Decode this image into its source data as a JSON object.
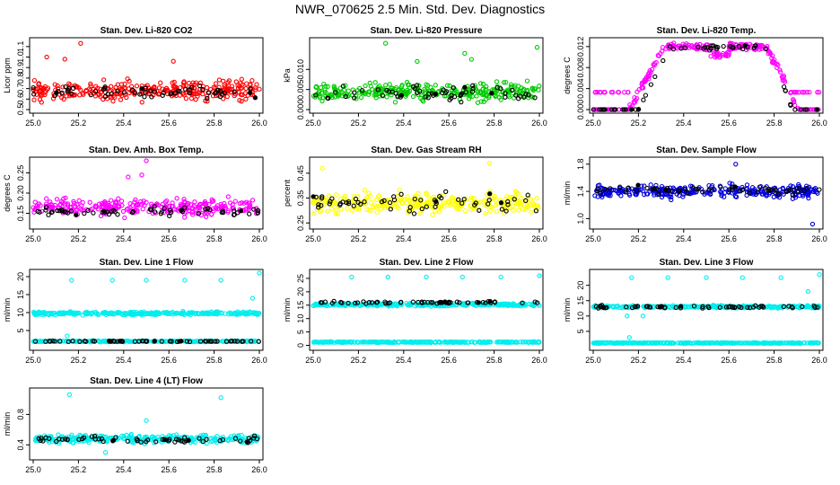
{
  "title": "NWR_070625  2.5 Min. Std. Dev. Diagnostics",
  "chart_data": [
    {
      "type": "scatter",
      "title": "Stan. Dev. Li-820 CO2",
      "ylabel": "Licor ppm",
      "color": "#ff0000",
      "xlim": [
        25.0,
        26.0
      ],
      "ylim": [
        0.5,
        1.15
      ],
      "xticks": [
        "25.0",
        "25.2",
        "25.4",
        "25.6",
        "25.8",
        "26.0"
      ],
      "yticks": [
        "0.5",
        "0.6",
        "0.7",
        "0.8",
        "0.9",
        "1.0",
        "1.1"
      ],
      "series": [
        {
          "center": 0.68,
          "spread": 0.08,
          "outliers": [
            [
              25.21,
              1.13
            ],
            [
              25.06,
              1.0
            ],
            [
              25.14,
              0.98
            ],
            [
              25.62,
              0.96
            ]
          ]
        }
      ],
      "black": {
        "center": 0.66,
        "spread": 0.06
      }
    },
    {
      "type": "scatter",
      "title": "Stan. Dev. Li-820 Pressure",
      "ylabel": "kPa",
      "color": "#00cc00",
      "xlim": [
        25.0,
        26.0
      ],
      "ylim": [
        0.0,
        0.017
      ],
      "xticks": [
        "25.0",
        "25.2",
        "25.4",
        "25.6",
        "25.8",
        "26.0"
      ],
      "yticks": [
        "0.000",
        "0.005",
        "0.010"
      ],
      "series": [
        {
          "center": 0.0045,
          "spread": 0.002,
          "outliers": [
            [
              25.32,
              0.0165
            ],
            [
              25.99,
              0.0155
            ],
            [
              25.67,
              0.014
            ],
            [
              25.46,
              0.012
            ],
            [
              25.7,
              0.0125
            ]
          ]
        }
      ],
      "black": {
        "center": 0.004,
        "spread": 0.002
      }
    },
    {
      "type": "scatter",
      "title": "Stan. Dev. Li-820 Temp.",
      "ylabel": "degrees C",
      "color": "#ff00ff",
      "xlim": [
        25.0,
        26.0
      ],
      "ylim": [
        0.0,
        0.013
      ],
      "xticks": [
        "25.0",
        "25.2",
        "25.4",
        "25.6",
        "25.8",
        "26.0"
      ],
      "yticks": [
        "0.000",
        "0.004",
        "0.008",
        "0.012"
      ],
      "series": [
        {
          "profile": "hump",
          "low": 0.0,
          "high": 0.0125,
          "start": 25.2,
          "end": 25.88
        }
      ],
      "black": {
        "profile": "hump"
      }
    },
    {
      "type": "scatter",
      "title": "Stan. Dev. Amb. Box Temp.",
      "ylabel": "degrees C",
      "color": "#ff00ff",
      "xlim": [
        25.0,
        26.0
      ],
      "ylim": [
        0.12,
        0.28
      ],
      "xticks": [
        "25.0",
        "25.2",
        "25.4",
        "25.6",
        "25.8",
        "26.0"
      ],
      "yticks": [
        "0.15",
        "0.20",
        "0.25"
      ],
      "series": [
        {
          "center": 0.165,
          "spread": 0.02,
          "outliers": [
            [
              25.5,
              0.28
            ],
            [
              25.48,
              0.245
            ],
            [
              25.42,
              0.24
            ]
          ]
        }
      ],
      "black": {
        "center": 0.155,
        "spread": 0.01
      }
    },
    {
      "type": "scatter",
      "title": "Stan. Dev. Gas Stream RH",
      "ylabel": "percent",
      "color": "#ffff00",
      "xlim": [
        25.0,
        26.0
      ],
      "ylim": [
        0.24,
        0.5
      ],
      "xticks": [
        "25.0",
        "25.2",
        "25.4",
        "25.6",
        "25.8",
        "26.0"
      ],
      "yticks": [
        "0.25",
        "0.35",
        "0.45"
      ],
      "series": [
        {
          "center": 0.33,
          "spread": 0.04,
          "outliers": [
            [
              25.78,
              0.49
            ],
            [
              25.04,
              0.47
            ]
          ]
        }
      ],
      "black": {
        "center": 0.33,
        "spread": 0.04
      }
    },
    {
      "type": "scatter",
      "title": "Stan. Dev. Sample Flow",
      "ylabel": "ml/min",
      "color": "#0000dd",
      "xlim": [
        25.0,
        26.0
      ],
      "ylim": [
        0.9,
        1.85
      ],
      "xticks": [
        "25.0",
        "25.2",
        "25.4",
        "25.6",
        "25.8",
        "26.0"
      ],
      "yticks": [
        "1.0",
        "1.4",
        "1.8"
      ],
      "series": [
        {
          "center": 1.4,
          "spread": 0.09,
          "outliers": [
            [
              25.63,
              1.8
            ],
            [
              25.97,
              0.92
            ]
          ]
        }
      ],
      "black": {
        "center": 1.42,
        "spread": 0.06
      }
    },
    {
      "type": "scatter",
      "title": "Stan. Dev. Line 1 Flow",
      "ylabel": "ml/min",
      "color": "#00eeee",
      "xlim": [
        25.0,
        26.0
      ],
      "ylim": [
        0.5,
        21
      ],
      "xticks": [
        "25.0",
        "25.2",
        "25.4",
        "25.6",
        "25.8",
        "26.0"
      ],
      "yticks": [
        "5",
        "10",
        "15",
        "20"
      ],
      "series": [
        {
          "center": 9.8,
          "spread": 0.4,
          "outliers": [
            [
              26.0,
              21
            ],
            [
              25.17,
              19
            ],
            [
              25.35,
              19
            ],
            [
              25.5,
              19
            ],
            [
              25.67,
              19
            ],
            [
              25.83,
              19
            ],
            [
              25.97,
              14
            ],
            [
              25.15,
              3.5
            ]
          ]
        },
        {
          "center": 2.0,
          "spread": 0.15
        }
      ],
      "black": {
        "center": 2.0,
        "spread": 0.1
      }
    },
    {
      "type": "scatter",
      "title": "Stan. Dev. Line 2 Flow",
      "ylabel": "ml/min",
      "color": "#00eeee",
      "xlim": [
        25.0,
        26.0
      ],
      "ylim": [
        -0.5,
        27
      ],
      "xticks": [
        "25.0",
        "25.2",
        "25.4",
        "25.6",
        "25.8",
        "26.0"
      ],
      "yticks": [
        "0",
        "5",
        "10",
        "15",
        "20",
        "25"
      ],
      "series": [
        {
          "center": 15.2,
          "spread": 0.5,
          "outliers": [
            [
              25.17,
              25.5
            ],
            [
              25.33,
              25.5
            ],
            [
              25.5,
              25.5
            ],
            [
              25.66,
              25.5
            ],
            [
              25.83,
              25.5
            ],
            [
              26.0,
              26
            ]
          ]
        },
        {
          "center": 1.2,
          "spread": 0.15
        }
      ],
      "black": {
        "center": 16.0,
        "spread": 0.4
      }
    },
    {
      "type": "scatter",
      "title": "Stan. Dev. Line 3 Flow",
      "ylabel": "ml/min",
      "color": "#00eeee",
      "xlim": [
        25.0,
        26.0
      ],
      "ylim": [
        0,
        24
      ],
      "xticks": [
        "25.0",
        "25.2",
        "25.4",
        "25.6",
        "25.8",
        "26.0"
      ],
      "yticks": [
        "5",
        "10",
        "15",
        "20"
      ],
      "series": [
        {
          "center": 13.0,
          "spread": 0.4,
          "outliers": [
            [
              25.17,
              22.5
            ],
            [
              25.33,
              22.5
            ],
            [
              25.5,
              22.5
            ],
            [
              25.66,
              22.5
            ],
            [
              25.83,
              22.5
            ],
            [
              26.0,
              23.5
            ],
            [
              25.15,
              10
            ],
            [
              25.22,
              10
            ],
            [
              25.95,
              18
            ],
            [
              25.16,
              3
            ]
          ]
        },
        {
          "center": 1.2,
          "spread": 0.15
        }
      ],
      "black": {
        "center": 13.0,
        "spread": 0.4
      }
    },
    {
      "type": "scatter",
      "title": "Stan. Dev. Line 4 (LT) Flow",
      "ylabel": "ml/min",
      "color": "#00eeee",
      "xlim": [
        25.0,
        26.0
      ],
      "ylim": [
        0.25,
        1.1
      ],
      "xticks": [
        "25.0",
        "25.2",
        "25.4",
        "25.6",
        "25.8",
        "26.0"
      ],
      "yticks": [
        "0.4",
        "0.8"
      ],
      "series": [
        {
          "center": 0.48,
          "spread": 0.05,
          "outliers": [
            [
              25.16,
              1.06
            ],
            [
              25.83,
              1.02
            ],
            [
              25.5,
              0.72
            ],
            [
              25.32,
              0.3
            ]
          ]
        }
      ],
      "black": {
        "center": 0.47,
        "spread": 0.04
      }
    }
  ]
}
